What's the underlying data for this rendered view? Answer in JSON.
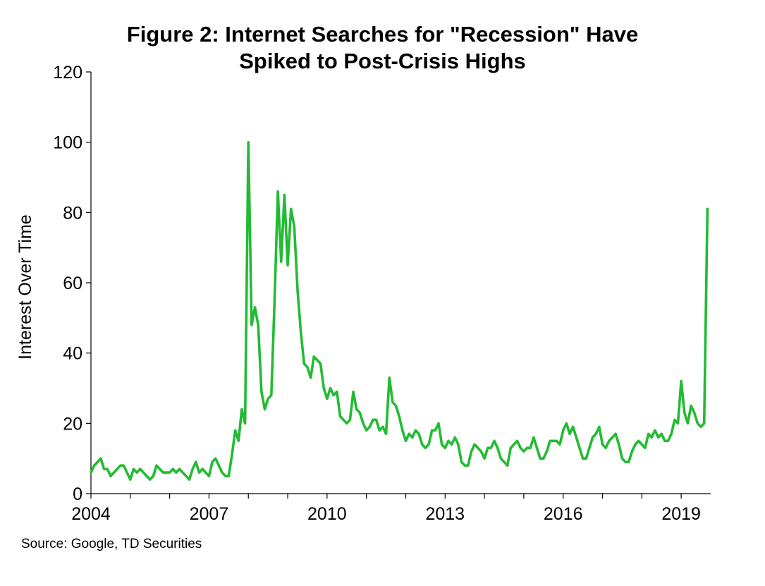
{
  "chart_data": {
    "type": "line",
    "title_line1": "Figure 2: Internet Searches for \"Recession\" Have",
    "title_line2": "Spiked to Post-Crisis Highs",
    "xlabel": "",
    "ylabel": "Interest Over Time",
    "ylim": [
      0,
      120
    ],
    "yticks": [
      "0",
      "20",
      "40",
      "60",
      "80",
      "100",
      "120"
    ],
    "xticks": [
      "2004",
      "2007",
      "2010",
      "2013",
      "2016",
      "2019"
    ],
    "xlim": [
      2004.0,
      2019.75
    ],
    "x_start": 2004.0,
    "x_step_months": 1,
    "grid": false,
    "legend": "none",
    "series": [
      {
        "name": "Recession",
        "color": "#22bb33",
        "values": [
          6,
          8,
          9,
          10,
          7,
          7,
          5,
          6,
          7,
          8,
          8,
          6,
          4,
          7,
          6,
          7,
          6,
          5,
          4,
          5,
          8,
          7,
          6,
          6,
          6,
          7,
          6,
          7,
          6,
          5,
          4,
          7,
          9,
          6,
          7,
          6,
          5,
          9,
          10,
          8,
          6,
          5,
          5,
          11,
          18,
          15,
          24,
          20,
          100,
          48,
          53,
          48,
          29,
          24,
          27,
          28,
          55,
          86,
          66,
          85,
          65,
          81,
          76,
          58,
          46,
          37,
          36,
          33,
          39,
          38,
          37,
          30,
          27,
          30,
          28,
          29,
          22,
          21,
          20,
          21,
          29,
          24,
          23,
          20,
          18,
          19,
          21,
          21,
          18,
          19,
          17,
          33,
          26,
          25,
          22,
          18,
          15,
          17,
          16,
          18,
          17,
          14,
          13,
          14,
          18,
          18,
          20,
          14,
          13,
          15,
          14,
          16,
          14,
          9,
          8,
          8,
          12,
          14,
          13,
          12,
          10,
          13,
          13,
          15,
          13,
          10,
          9,
          8,
          13,
          14,
          15,
          13,
          12,
          13,
          13,
          16,
          13,
          10,
          10,
          12,
          15,
          15,
          15,
          14,
          18,
          20,
          17,
          19,
          16,
          13,
          10,
          10,
          13,
          16,
          17,
          19,
          14,
          13,
          15,
          16,
          17,
          14,
          10,
          9,
          9,
          12,
          14,
          15,
          14,
          13,
          17,
          16,
          18,
          16,
          17,
          15,
          15,
          17,
          21,
          20,
          32,
          23,
          20,
          25,
          23,
          20,
          19,
          20,
          81
        ]
      }
    ]
  },
  "source_text": "Source: Google, TD Securities"
}
